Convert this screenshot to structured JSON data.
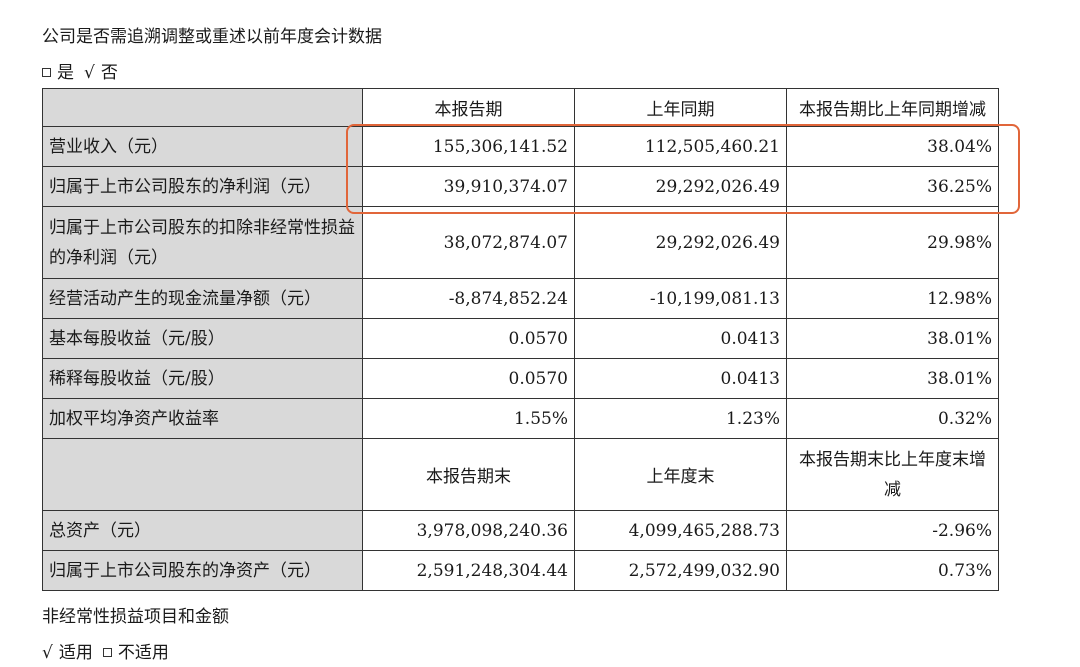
{
  "heading": "公司是否需追溯调整或重述以前年度会计数据",
  "retro_choice": {
    "yes": "是",
    "no": "否",
    "check_mark": "√"
  },
  "table": {
    "headers1": [
      "本报告期",
      "上年同期",
      "本报告期比上年同期增减"
    ],
    "rows1": [
      {
        "label": "营业收入（元）",
        "current": "155,306,141.52",
        "prior": "112,505,460.21",
        "change": "38.04%"
      },
      {
        "label": "归属于上市公司股东的净利润（元）",
        "current": "39,910,374.07",
        "prior": "29,292,026.49",
        "change": "36.25%"
      },
      {
        "label": "归属于上市公司股东的扣除非经常性损益的净利润（元）",
        "current": "38,072,874.07",
        "prior": "29,292,026.49",
        "change": "29.98%"
      },
      {
        "label": "经营活动产生的现金流量净额（元）",
        "current": "-8,874,852.24",
        "prior": "-10,199,081.13",
        "change": "12.98%"
      },
      {
        "label": "基本每股收益（元/股）",
        "current": "0.0570",
        "prior": "0.0413",
        "change": "38.01%"
      },
      {
        "label": "稀释每股收益（元/股）",
        "current": "0.0570",
        "prior": "0.0413",
        "change": "38.01%"
      },
      {
        "label": "加权平均净资产收益率",
        "current": "1.55%",
        "prior": "1.23%",
        "change": "0.32%"
      }
    ],
    "headers2": [
      "本报告期末",
      "上年度末",
      "本报告期末比上年度末增减"
    ],
    "rows2": [
      {
        "label": "总资产（元）",
        "current": "3,978,098,240.36",
        "prior": "4,099,465,288.73",
        "change": "-2.96%"
      },
      {
        "label": "归属于上市公司股东的净资产（元）",
        "current": "2,591,248,304.44",
        "prior": "2,572,499,032.90",
        "change": "0.73%"
      }
    ]
  },
  "sub_heading": "非经常性损益项目和金额",
  "applicable_choice": {
    "check_mark": "√",
    "applicable": "适用",
    "not_applicable": "不适用"
  },
  "colors": {
    "highlight": "#e1663a",
    "label_bg": "#d9d9d9"
  }
}
